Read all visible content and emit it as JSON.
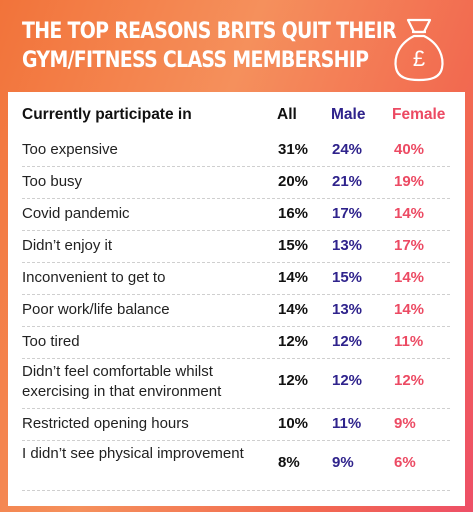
{
  "title_lines": [
    "THE TOP REASONS BRITS QUIT THEIR",
    "GYM/FITNESS CLASS MEMBERSHIP"
  ],
  "bag_symbol": "£",
  "headers": {
    "label": "Currently participate in",
    "all": "All",
    "male": "Male",
    "female": "Female"
  },
  "colors": {
    "male": "#2f238c",
    "female": "#ec4a63",
    "accent": "#f2733a"
  },
  "rows": [
    {
      "label": "Too expensive",
      "all": "31%",
      "male": "24%",
      "female": "40%"
    },
    {
      "label": "Too busy",
      "all": "20%",
      "male": "21%",
      "female": "19%"
    },
    {
      "label": "Covid pandemic",
      "all": "16%",
      "male": "17%",
      "female": "14%"
    },
    {
      "label": "Didn’t enjoy it",
      "all": "15%",
      "male": "13%",
      "female": "17%"
    },
    {
      "label": "Inconvenient to get to",
      "all": "14%",
      "male": "15%",
      "female": "14%"
    },
    {
      "label": "Poor work/life balance",
      "all": "14%",
      "male": "13%",
      "female": "14%"
    },
    {
      "label": "Too tired",
      "all": "12%",
      "male": "12%",
      "female": "11%"
    },
    {
      "label": "Didn’t feel comfortable whilst exercising in that environment",
      "all": "12%",
      "male": "12%",
      "female": "12%"
    },
    {
      "label": "Restricted opening hours",
      "all": "10%",
      "male": "11%",
      "female": "9%"
    },
    {
      "label": "I didn’t see physical improvement",
      "all": "8%",
      "male": "9%",
      "female": "6%"
    }
  ]
}
